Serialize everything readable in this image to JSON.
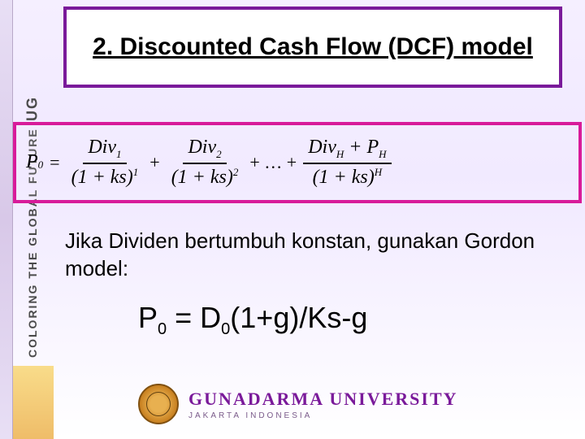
{
  "sidebar": {
    "text_top": "COLORING THE GLOBAL FUTURE",
    "text_ug": "UG"
  },
  "title": {
    "text": "2. Discounted Cash Flow (DCF) model",
    "fontsize": 30,
    "border_color": "#7a1a9a",
    "bg_color": "#ffffff"
  },
  "dcf_formula": {
    "border_color": "#d81b9a",
    "lhs_var": "P",
    "lhs_sub": "0",
    "eq": "=",
    "terms": [
      {
        "num_var": "Div",
        "num_sub": "1",
        "den": "(1 + ks)",
        "den_sup": "1"
      },
      {
        "num_var": "Div",
        "num_sub": "2",
        "den": "(1 + ks)",
        "den_sup": "2"
      }
    ],
    "dots": "+ … +",
    "last_term": {
      "num_left_var": "Div",
      "num_left_sub": "H",
      "num_plus": " + ",
      "num_right_var": "P",
      "num_right_sub": "H",
      "den": "(1 + ks)",
      "den_sup": "H"
    },
    "plus": "+"
  },
  "body": {
    "text": "Jika Dividen bertumbuh konstan, gunakan Gordon model:",
    "fontsize": 26
  },
  "gordon": {
    "p_var": "P",
    "p_sub": "0",
    "eq": " = ",
    "d_var": "D",
    "d_sub": "0",
    "tail": "(1+g)/Ks-g",
    "fontsize": 36
  },
  "footer": {
    "name": "GUNADARMA UNIVERSITY",
    "subtitle": "JAKARTA INDONESIA",
    "name_color": "#7a1a9a"
  },
  "colors": {
    "background_gradient_top": "#f5efff",
    "background_gradient_bottom": "#ffffff",
    "purple": "#7a1a9a",
    "magenta": "#d81b9a"
  }
}
